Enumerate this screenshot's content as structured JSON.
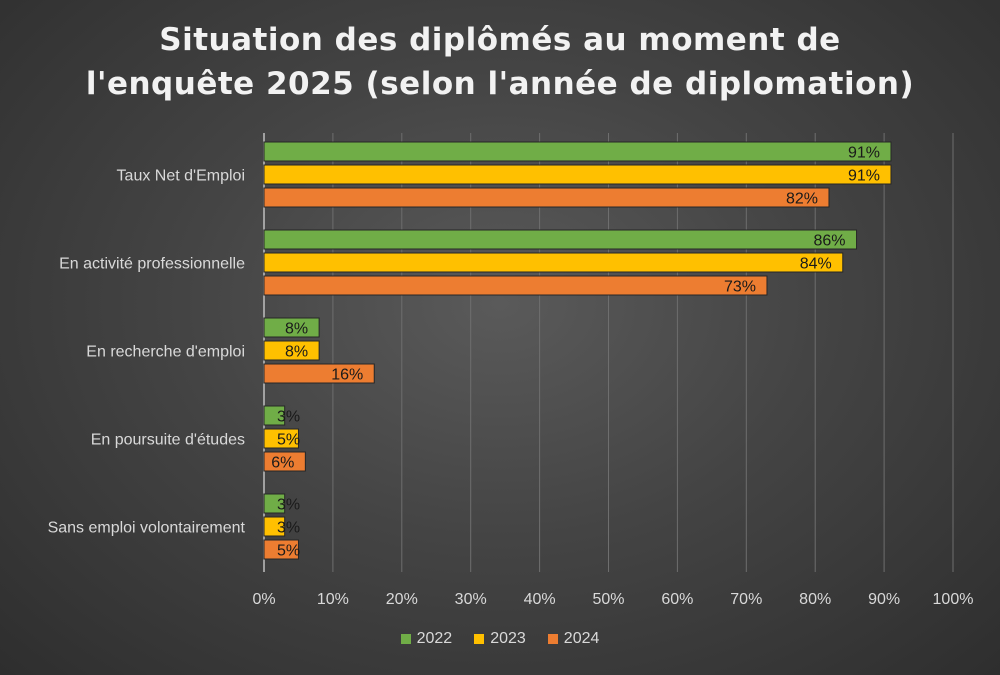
{
  "chart_data": {
    "type": "bar",
    "orientation": "horizontal",
    "title_lines": [
      "Situation des diplômés au moment de",
      "l'enquête 2025 (selon l'année de diplomation)"
    ],
    "categories": [
      "Taux Net d'Emploi",
      "En activité professionnelle",
      "En recherche d'emploi",
      "En poursuite d'études",
      "Sans emploi volontairement"
    ],
    "series": [
      {
        "name": "2022",
        "color": "#70ad47",
        "values": [
          91,
          86,
          8,
          3,
          3
        ],
        "labels": [
          "91%",
          "86%",
          "8%",
          "3%",
          "3%"
        ]
      },
      {
        "name": "2023",
        "color": "#ffc000",
        "values": [
          91,
          84,
          8,
          5,
          3
        ],
        "labels": [
          "91%",
          "84%",
          "8%",
          "5%",
          "3%"
        ]
      },
      {
        "name": "2024",
        "color": "#ed7d31",
        "values": [
          82,
          73,
          16,
          6,
          5
        ],
        "labels": [
          "82%",
          "73%",
          "16%",
          "6%",
          "5%"
        ]
      }
    ],
    "xlim": [
      0,
      100
    ],
    "xticks": [
      0,
      10,
      20,
      30,
      40,
      50,
      60,
      70,
      80,
      90,
      100
    ],
    "xtick_labels": [
      "0%",
      "10%",
      "20%",
      "30%",
      "40%",
      "50%",
      "60%",
      "70%",
      "80%",
      "90%",
      "100%"
    ],
    "grid": true,
    "legend_position": "bottom"
  }
}
